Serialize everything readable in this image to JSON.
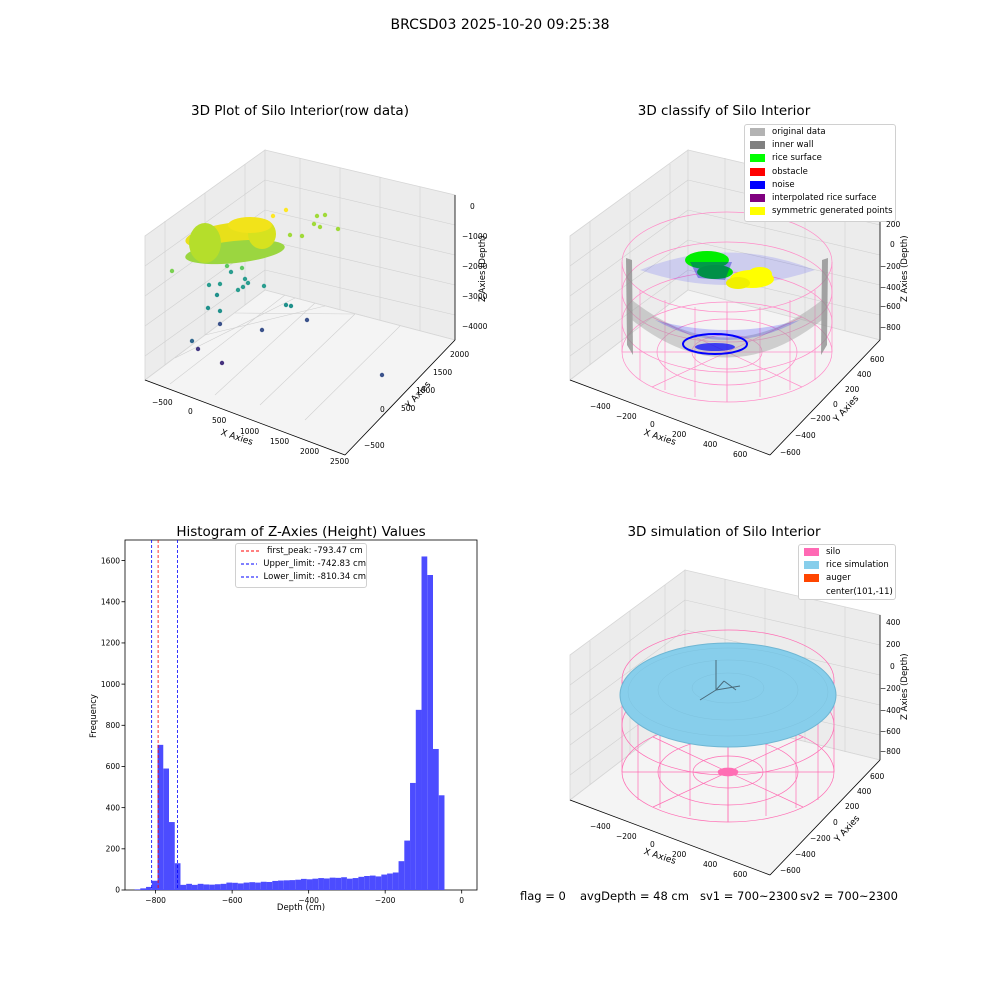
{
  "suptitle": "BRCSD03 2025-10-20 09:25:38",
  "footer": {
    "flag": "flag = 0",
    "avg_depth": "avgDepth = 48 cm",
    "sv1": "sv1 = 700~2300",
    "sv2": "sv2 = 700~2300"
  },
  "plot1": {
    "title": "3D Plot of Silo Interior(row data)",
    "xlabel": "X Axies",
    "ylabel": "Y Axies",
    "zlabel": "Z Axies (Depth)",
    "xticks": [
      "−500",
      "0",
      "500",
      "1000",
      "1500",
      "2000",
      "2500"
    ],
    "yticks": [
      "−500",
      "0",
      "500",
      "1000",
      "1500",
      "2000"
    ],
    "zticks": [
      "0",
      "−1000",
      "−2000",
      "−3000",
      "−4000"
    ]
  },
  "plot2": {
    "title": "3D classify of Silo Interior",
    "xlabel": "X Axies",
    "ylabel": "Y Axies",
    "zlabel": "Z Axies (Depth)",
    "xticks": [
      "−400",
      "−200",
      "0",
      "200",
      "400",
      "600"
    ],
    "yticks": [
      "−600",
      "−400",
      "−200",
      "0",
      "200",
      "400",
      "600"
    ],
    "zticks": [
      "200",
      "0",
      "−200",
      "−400",
      "−600",
      "−800"
    ],
    "legend": [
      {
        "label": "original data",
        "color": "#b3b3b3"
      },
      {
        "label": "inner wall",
        "color": "#808080"
      },
      {
        "label": "rice surface",
        "color": "#00ff00"
      },
      {
        "label": "obstacle",
        "color": "#ff0000"
      },
      {
        "label": "noise",
        "color": "#0000ff"
      },
      {
        "label": "interpolated rice surface",
        "color": "#800080"
      },
      {
        "label": "symmetric generated points",
        "color": "#ffff00"
      }
    ]
  },
  "plot4": {
    "title": "3D simulation of Silo Interior",
    "xlabel": "X Axies",
    "ylabel": "Y Axies",
    "zlabel": "Z Axies (Depth)",
    "xticks": [
      "−400",
      "−200",
      "0",
      "200",
      "400",
      "600"
    ],
    "yticks": [
      "−600",
      "−400",
      "−200",
      "0",
      "200",
      "400",
      "600"
    ],
    "zticks": [
      "400",
      "200",
      "0",
      "−200",
      "−400",
      "−600",
      "−800"
    ],
    "legend": [
      {
        "label": "silo",
        "color": "#ff69b4"
      },
      {
        "label": "rice simulation",
        "color": "#87ceeb"
      },
      {
        "label": "auger",
        "color": "#ff4500"
      },
      {
        "label": "center(101,-11)",
        "color": ""
      }
    ]
  },
  "chart_data": {
    "type": "bar",
    "title": "Histogram of Z-Axies (Height) Values",
    "xlabel": "Depth (cm)",
    "ylabel": "Frequency",
    "xlim": [
      -880,
      40
    ],
    "ylim": [
      0,
      1700
    ],
    "xticks": [
      -800,
      -600,
      -400,
      -200,
      0
    ],
    "yticks": [
      0,
      200,
      400,
      600,
      800,
      1000,
      1200,
      1400,
      1600
    ],
    "bar_color": "#4c4cff",
    "bin_width": 15,
    "bins": [
      {
        "x": -855,
        "v": 3
      },
      {
        "x": -840,
        "v": 8
      },
      {
        "x": -825,
        "v": 15
      },
      {
        "x": -810,
        "v": 45
      },
      {
        "x": -795,
        "v": 705
      },
      {
        "x": -780,
        "v": 590
      },
      {
        "x": -765,
        "v": 330
      },
      {
        "x": -750,
        "v": 130
      },
      {
        "x": -735,
        "v": 25
      },
      {
        "x": -720,
        "v": 30
      },
      {
        "x": -705,
        "v": 25
      },
      {
        "x": -690,
        "v": 30
      },
      {
        "x": -675,
        "v": 27
      },
      {
        "x": -660,
        "v": 26
      },
      {
        "x": -645,
        "v": 28
      },
      {
        "x": -630,
        "v": 30
      },
      {
        "x": -615,
        "v": 36
      },
      {
        "x": -600,
        "v": 35
      },
      {
        "x": -585,
        "v": 32
      },
      {
        "x": -570,
        "v": 36
      },
      {
        "x": -555,
        "v": 38
      },
      {
        "x": -540,
        "v": 36
      },
      {
        "x": -525,
        "v": 40
      },
      {
        "x": -510,
        "v": 39
      },
      {
        "x": -495,
        "v": 44
      },
      {
        "x": -480,
        "v": 46
      },
      {
        "x": -465,
        "v": 47
      },
      {
        "x": -450,
        "v": 48
      },
      {
        "x": -435,
        "v": 50
      },
      {
        "x": -420,
        "v": 54
      },
      {
        "x": -405,
        "v": 52
      },
      {
        "x": -390,
        "v": 55
      },
      {
        "x": -375,
        "v": 58
      },
      {
        "x": -360,
        "v": 56
      },
      {
        "x": -345,
        "v": 60
      },
      {
        "x": -330,
        "v": 59
      },
      {
        "x": -315,
        "v": 62
      },
      {
        "x": -300,
        "v": 55
      },
      {
        "x": -285,
        "v": 58
      },
      {
        "x": -270,
        "v": 64
      },
      {
        "x": -255,
        "v": 68
      },
      {
        "x": -240,
        "v": 70
      },
      {
        "x": -225,
        "v": 66
      },
      {
        "x": -210,
        "v": 75
      },
      {
        "x": -195,
        "v": 80
      },
      {
        "x": -180,
        "v": 85
      },
      {
        "x": -165,
        "v": 140
      },
      {
        "x": -150,
        "v": 240
      },
      {
        "x": -135,
        "v": 520
      },
      {
        "x": -120,
        "v": 875
      },
      {
        "x": -105,
        "v": 1620
      },
      {
        "x": -90,
        "v": 1530
      },
      {
        "x": -75,
        "v": 685
      },
      {
        "x": -60,
        "v": 460
      }
    ],
    "vlines": [
      {
        "x": -793.47,
        "label": "first_peak: -793.47 cm",
        "color": "#ff0000"
      },
      {
        "x": -742.83,
        "label": "Upper_limit: -742.83 cm",
        "color": "#0000ff"
      },
      {
        "x": -810.34,
        "label": "Lower_limit: -810.34 cm",
        "color": "#0000ff"
      }
    ]
  }
}
